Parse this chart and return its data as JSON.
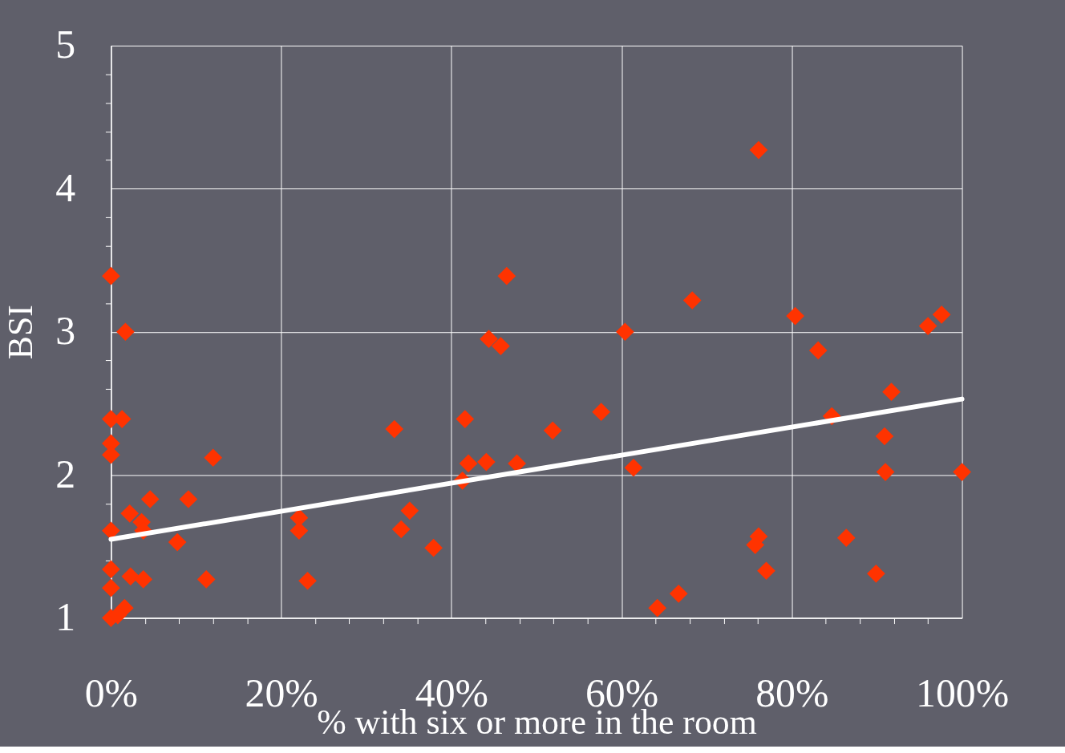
{
  "chart_data": {
    "type": "scatter",
    "xlabel": "% with six or more in the room",
    "ylabel": "BSI",
    "xlim": [
      0,
      100
    ],
    "ylim": [
      1,
      5
    ],
    "xticks": [
      {
        "value": 0,
        "label": "0%"
      },
      {
        "value": 4,
        "label": null
      },
      {
        "value": 8,
        "label": null
      },
      {
        "value": 12,
        "label": null
      },
      {
        "value": 16,
        "label": null
      },
      {
        "value": 20,
        "label": "20%"
      },
      {
        "value": 24,
        "label": null
      },
      {
        "value": 28,
        "label": null
      },
      {
        "value": 32,
        "label": null
      },
      {
        "value": 36,
        "label": null
      },
      {
        "value": 40,
        "label": "40%"
      },
      {
        "value": 44,
        "label": null
      },
      {
        "value": 48,
        "label": null
      },
      {
        "value": 52,
        "label": null
      },
      {
        "value": 56,
        "label": null
      },
      {
        "value": 60,
        "label": "60%"
      },
      {
        "value": 64,
        "label": null
      },
      {
        "value": 68,
        "label": null
      },
      {
        "value": 72,
        "label": null
      },
      {
        "value": 76,
        "label": null
      },
      {
        "value": 80,
        "label": "80%"
      },
      {
        "value": 84,
        "label": null
      },
      {
        "value": 88,
        "label": null
      },
      {
        "value": 92,
        "label": null
      },
      {
        "value": 96,
        "label": null
      },
      {
        "value": 100,
        "label": "100%"
      }
    ],
    "yticks": [
      1,
      {
        "value": 1.2,
        "label": null
      },
      {
        "value": 1.4,
        "label": null
      },
      {
        "value": 1.6,
        "label": null
      },
      {
        "value": 1.8,
        "label": null
      },
      2,
      {
        "value": 2.2,
        "label": null
      },
      {
        "value": 2.4,
        "label": null
      },
      {
        "value": 2.6,
        "label": null
      },
      {
        "value": 2.8,
        "label": null
      },
      3,
      {
        "value": 3.2,
        "label": null
      },
      {
        "value": 3.4,
        "label": null
      },
      {
        "value": 3.6,
        "label": null
      },
      {
        "value": 3.8,
        "label": null
      },
      4,
      {
        "value": 4.2,
        "label": null
      },
      {
        "value": 4.4,
        "label": null
      },
      {
        "value": 4.6,
        "label": null
      },
      {
        "value": 4.8,
        "label": null
      },
      5
    ],
    "grid": true,
    "marker": "diamond",
    "series": [
      {
        "color": "#ff3300",
        "x": [
          0,
          1.7,
          0,
          1.3,
          0,
          0,
          12,
          0,
          2.2,
          3.6,
          3.8,
          4.6,
          9.1,
          7.8,
          0,
          0,
          2.3,
          3.8,
          11.2,
          1.6,
          0,
          0.8,
          22.1,
          22.1,
          23.1,
          33.3,
          34.1,
          35.1,
          37.9,
          41.6,
          41.3,
          42,
          44.1,
          47.7,
          44.4,
          45.8,
          46.5,
          51.9,
          57.6,
          60.4,
          61.4,
          64.2,
          66.7,
          68.3,
          76.1,
          76.1,
          75.7,
          77,
          80.4,
          83.1,
          84.7,
          86.4,
          89.9,
          90.9,
          91,
          91.7,
          96,
          97.6,
          100
        ],
        "values": [
          3.39,
          3.0,
          2.39,
          2.39,
          2.22,
          2.14,
          2.12,
          1.61,
          1.73,
          1.67,
          1.61,
          1.83,
          1.83,
          1.53,
          1.34,
          1.21,
          1.29,
          1.27,
          1.27,
          1.07,
          1.0,
          1.02,
          1.7,
          1.61,
          1.26,
          2.32,
          1.62,
          1.75,
          1.49,
          2.39,
          1.96,
          2.08,
          2.09,
          2.08,
          2.95,
          2.9,
          3.39,
          2.31,
          2.44,
          3.0,
          2.05,
          1.07,
          1.17,
          3.22,
          4.27,
          1.57,
          1.51,
          1.33,
          3.11,
          2.87,
          2.41,
          1.56,
          1.31,
          2.27,
          2.02,
          2.58,
          3.04,
          3.12,
          2.02
        ]
      },
      {
        "type": "line",
        "color": "#ffffff",
        "x": [
          0,
          100
        ],
        "values": [
          1.55,
          2.53
        ],
        "marker": "none",
        "line_style": "solid"
      }
    ]
  }
}
